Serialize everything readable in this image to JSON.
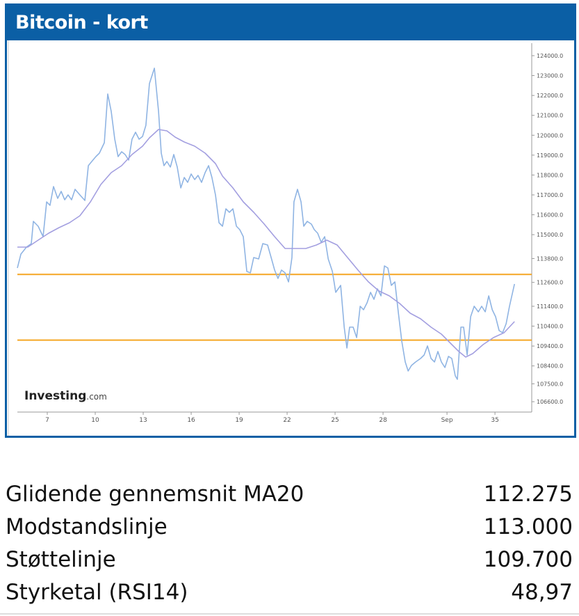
{
  "header": {
    "title": "Bitcoin - kort"
  },
  "chart_data": {
    "type": "line",
    "watermark": {
      "brand": "Investing",
      "suffix": ".com"
    },
    "xlim": [
      5.13,
      37.3
    ],
    "xticks": [
      7,
      10,
      13,
      16,
      19,
      22,
      25,
      28,
      {
        "value": 32,
        "label": "Sep"
      },
      35
    ],
    "ylim": [
      106080,
      124630
    ],
    "yticks": [
      {
        "value": 124000,
        "label": "124000.0"
      },
      {
        "value": 123000,
        "label": "123000.0"
      },
      {
        "value": 122000,
        "label": "122000.0"
      },
      {
        "value": 121000,
        "label": "121000.0"
      },
      {
        "value": 120000,
        "label": "120000.0"
      },
      {
        "value": 119000,
        "label": "119000.0"
      },
      {
        "value": 118000,
        "label": "118000.0"
      },
      {
        "value": 117000,
        "label": "117000.0"
      },
      {
        "value": 116000,
        "label": "116000.0"
      },
      {
        "value": 115000,
        "label": "115000.0"
      },
      {
        "value": 113800,
        "label": "113800.0"
      },
      {
        "value": 112600,
        "label": "112600.0"
      },
      {
        "value": 111400,
        "label": "111400.0"
      },
      {
        "value": 110400,
        "label": "110400.0"
      },
      {
        "value": 109400,
        "label": "109400.0"
      },
      {
        "value": 108400,
        "label": "108400.0"
      },
      {
        "value": 107500,
        "label": "107500.0"
      },
      {
        "value": 106600,
        "label": "106600.0"
      }
    ],
    "hlines": [
      {
        "value": 113000,
        "color": "#f5a623"
      },
      {
        "value": 109700,
        "color": "#f5a623"
      }
    ],
    "series": [
      {
        "color": "#8fb4e3",
        "x": [
          5.13,
          5.35,
          5.7,
          6.0,
          6.13,
          6.43,
          6.74,
          6.96,
          7.17,
          7.39,
          7.65,
          7.87,
          8.09,
          8.3,
          8.52,
          8.74,
          9.04,
          9.35,
          9.57,
          9.78,
          10.04,
          10.26,
          10.57,
          10.78,
          11.0,
          11.22,
          11.43,
          11.65,
          11.87,
          12.09,
          12.3,
          12.52,
          12.74,
          12.96,
          13.17,
          13.39,
          13.7,
          13.96,
          14.13,
          14.3,
          14.48,
          14.7,
          14.91,
          15.13,
          15.35,
          15.57,
          15.78,
          16.0,
          16.22,
          16.43,
          16.65,
          16.87,
          17.09,
          17.3,
          17.52,
          17.74,
          17.96,
          18.17,
          18.39,
          18.61,
          18.83,
          19.04,
          19.26,
          19.48,
          19.7,
          19.91,
          20.22,
          20.48,
          20.78,
          21.0,
          21.22,
          21.43,
          21.65,
          21.87,
          22.09,
          22.3,
          22.43,
          22.65,
          22.87,
          23.04,
          23.26,
          23.52,
          23.7,
          23.91,
          24.13,
          24.35,
          24.57,
          24.83,
          25.04,
          25.35,
          25.57,
          25.74,
          25.91,
          26.13,
          26.35,
          26.57,
          26.78,
          27.0,
          27.22,
          27.43,
          27.65,
          27.87,
          28.09,
          28.3,
          28.52,
          28.74,
          28.96,
          29.17,
          29.39,
          29.57,
          29.78,
          30.04,
          30.35,
          30.57,
          30.78,
          31.0,
          31.22,
          31.43,
          31.65,
          31.87,
          32.09,
          32.3,
          32.52,
          32.65,
          32.87,
          33.04,
          33.26,
          33.48,
          33.7,
          33.96,
          34.17,
          34.39,
          34.61,
          34.83,
          35.04,
          35.26,
          35.48,
          35.7,
          35.91,
          36.22
        ],
        "values": [
          113325,
          114025,
          114375,
          114550,
          115670,
          115425,
          114900,
          116650,
          116475,
          117420,
          116825,
          117175,
          116755,
          117000,
          116755,
          117280,
          117000,
          116720,
          118470,
          118680,
          118925,
          119100,
          119625,
          122075,
          121200,
          119800,
          118925,
          119170,
          119030,
          118750,
          119800,
          120150,
          119800,
          119940,
          120500,
          122600,
          123370,
          121200,
          119100,
          118470,
          118680,
          118400,
          119030,
          118400,
          117350,
          117875,
          117630,
          118050,
          117770,
          117980,
          117630,
          118120,
          118470,
          117875,
          117000,
          115600,
          115425,
          116300,
          116125,
          116300,
          115425,
          115250,
          114900,
          113150,
          113080,
          113850,
          113780,
          114550,
          114480,
          113850,
          113220,
          112800,
          113220,
          113080,
          112625,
          113850,
          116650,
          117280,
          116650,
          115425,
          115670,
          115530,
          115250,
          115075,
          114620,
          114900,
          113780,
          113150,
          112100,
          112450,
          110350,
          109300,
          110350,
          110350,
          109825,
          111400,
          111225,
          111575,
          112100,
          111750,
          112275,
          111925,
          113430,
          113325,
          112450,
          112625,
          111050,
          109650,
          108600,
          108145,
          108425,
          108600,
          108775,
          108950,
          109405,
          108775,
          108600,
          109125,
          108600,
          108320,
          108880,
          108775,
          107900,
          107725,
          110350,
          110350,
          108950,
          110875,
          111400,
          111120,
          111400,
          111120,
          111925,
          111225,
          110875,
          110175,
          110070,
          110525,
          111400,
          112520
        ]
      },
      {
        "color": "#a39fe0",
        "x": [
          5.13,
          5.78,
          6.43,
          7.09,
          7.74,
          8.39,
          9.04,
          9.7,
          10.35,
          11.0,
          11.65,
          12.3,
          12.96,
          13.39,
          13.96,
          14.48,
          15.0,
          15.57,
          16.22,
          16.87,
          17.52,
          17.96,
          18.61,
          19.26,
          19.91,
          20.57,
          21.22,
          21.87,
          22.52,
          23.17,
          23.83,
          24.48,
          25.13,
          25.78,
          26.43,
          27.09,
          27.74,
          28.39,
          29.04,
          29.7,
          30.35,
          31.0,
          31.65,
          32.3,
          32.74,
          33.17,
          33.61,
          34.26,
          34.91,
          35.57,
          36.22
        ],
        "values": [
          114375,
          114375,
          114725,
          115075,
          115355,
          115600,
          115950,
          116650,
          117525,
          118120,
          118470,
          119030,
          119450,
          119870,
          120290,
          120220,
          119905,
          119660,
          119450,
          119100,
          118575,
          117945,
          117350,
          116650,
          116125,
          115530,
          114900,
          114305,
          114305,
          114305,
          114480,
          114725,
          114480,
          113850,
          113220,
          112625,
          112170,
          111925,
          111540,
          111050,
          110770,
          110350,
          110000,
          109475,
          109125,
          108845,
          109020,
          109475,
          109825,
          110070,
          110630
        ]
      }
    ]
  },
  "stats": {
    "rows": [
      [
        "Glidende gennemsnit MA20",
        "112.275"
      ],
      [
        "Modstandslinje",
        "113.000"
      ],
      [
        "Støttelinje",
        "109.700"
      ],
      [
        "Styrketal (RSI14)",
        "48,97"
      ]
    ]
  }
}
